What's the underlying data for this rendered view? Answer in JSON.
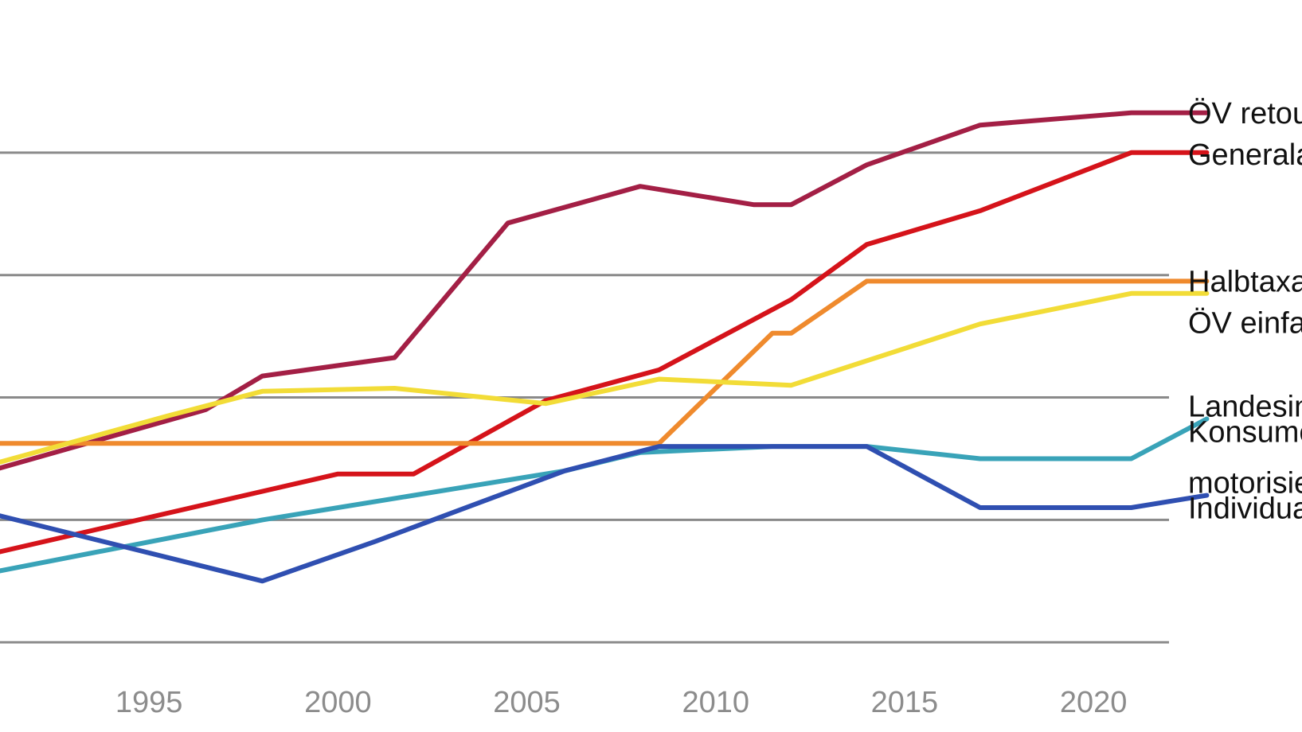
{
  "chart_data": {
    "type": "line",
    "title": "",
    "xlabel": "",
    "ylabel": "",
    "xlim": [
      1990,
      2022
    ],
    "ylim": [
      -4,
      100
    ],
    "grid": true,
    "gridlines": [
      0,
      20,
      40,
      60,
      80
    ],
    "x_ticks": [
      "1995",
      "2000",
      "2005",
      "2010",
      "2015",
      "2020"
    ],
    "legend": "right-end labels",
    "series": [
      {
        "name": "ÖV retour",
        "label_lines": [
          "ÖV retour"
        ],
        "color": "#a31f45",
        "points": [
          [
            1990,
            20.5
          ],
          [
            1990.5,
            27.5
          ],
          [
            1996.5,
            38
          ],
          [
            1998,
            43.5
          ],
          [
            2001.5,
            46.5
          ],
          [
            2004.5,
            68.5
          ],
          [
            2008,
            74.5
          ],
          [
            2011,
            71.5
          ],
          [
            2012,
            71.5
          ],
          [
            2014,
            78
          ],
          [
            2017,
            84.5
          ],
          [
            2021,
            86.5
          ],
          [
            2023,
            86.5
          ]
        ]
      },
      {
        "name": "Generalabonnement",
        "label_lines": [
          "Generalabonnement"
        ],
        "color": "#d5131a",
        "points": [
          [
            1990,
            8
          ],
          [
            1990.5,
            14
          ],
          [
            2000,
            27.5
          ],
          [
            2002,
            27.5
          ],
          [
            2005.5,
            39.5
          ],
          [
            2008.5,
            44.5
          ],
          [
            2012,
            56
          ],
          [
            2014,
            65
          ],
          [
            2017,
            70.5
          ],
          [
            2021,
            80
          ],
          [
            2023,
            80
          ]
        ]
      },
      {
        "name": "Halbtaxabonnement",
        "label_lines": [
          "Halbtaxabonnement"
        ],
        "color": "#ef8a2d",
        "points": [
          [
            1990,
            22.5
          ],
          [
            1990.5,
            32.5
          ],
          [
            2008.5,
            32.5
          ],
          [
            2011.5,
            50.5
          ],
          [
            2012,
            50.5
          ],
          [
            2014,
            59
          ],
          [
            2023,
            59
          ]
        ]
      },
      {
        "name": "ÖV einfach",
        "label_lines": [
          "ÖV einfach"
        ],
        "color": "#f2dc37",
        "points": [
          [
            1990,
            21.5
          ],
          [
            1990.5,
            28.5
          ],
          [
            1995.5,
            37
          ],
          [
            1998,
            41
          ],
          [
            2001.5,
            41.5
          ],
          [
            2005.5,
            39
          ],
          [
            2008.5,
            43
          ],
          [
            2012,
            42
          ],
          [
            2017,
            52
          ],
          [
            2021,
            57
          ],
          [
            2023,
            57
          ]
        ]
      },
      {
        "name": "Landesindex der Konsumentenpreise",
        "label_lines": [
          "Landesindex der",
          "Konsumentenpreise"
        ],
        "color": "#39a3b8",
        "points": [
          [
            1990,
            7
          ],
          [
            1990.5,
            11
          ],
          [
            1998,
            20
          ],
          [
            2004,
            26
          ],
          [
            2006,
            28
          ],
          [
            2008,
            31
          ],
          [
            2011.5,
            32
          ],
          [
            2014,
            32
          ],
          [
            2017,
            30
          ],
          [
            2021,
            30
          ],
          [
            2023,
            36.5
          ]
        ]
      },
      {
        "name": "motorisierter Individualverkehr",
        "label_lines": [
          "motorisierter",
          "Individualverkehr"
        ],
        "color": "#2f4fb1",
        "points": [
          [
            1990,
            14.5
          ],
          [
            1990.5,
            21.5
          ],
          [
            1998,
            10
          ],
          [
            2001,
            16.5
          ],
          [
            2006,
            28
          ],
          [
            2008.5,
            32
          ],
          [
            2011.5,
            32
          ],
          [
            2014,
            32
          ],
          [
            2017,
            22
          ],
          [
            2021,
            22
          ],
          [
            2023,
            24
          ]
        ]
      }
    ]
  }
}
